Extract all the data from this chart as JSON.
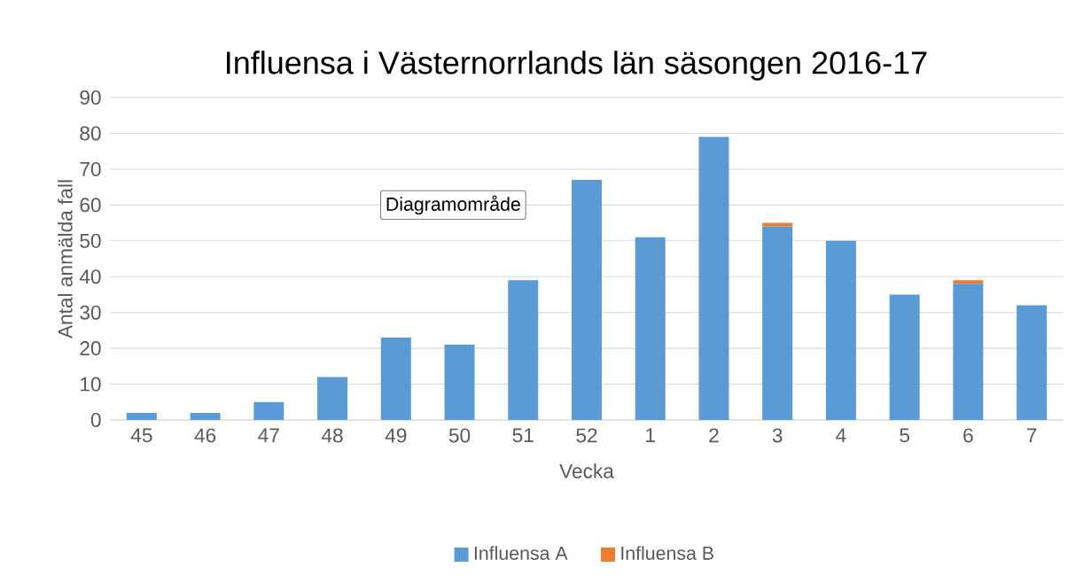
{
  "chart_data": {
    "type": "bar",
    "stacked": true,
    "title": "Influensa i Västernorrlands län säsongen 2016-17",
    "xlabel": "Vecka",
    "ylabel": "Antal anmälda fall",
    "categories": [
      "45",
      "46",
      "47",
      "48",
      "49",
      "50",
      "51",
      "52",
      "1",
      "2",
      "3",
      "4",
      "5",
      "6",
      "7"
    ],
    "series": [
      {
        "name": "Influensa A",
        "color": "#5b9bd5",
        "values": [
          2,
          2,
          5,
          12,
          23,
          21,
          39,
          67,
          51,
          79,
          54,
          50,
          35,
          38,
          32
        ]
      },
      {
        "name": "Influensa B",
        "color": "#ed7d31",
        "values": [
          0,
          0,
          0,
          0,
          0,
          0,
          0,
          0,
          0,
          0,
          1,
          0,
          0,
          1,
          0
        ]
      }
    ],
    "ylim": [
      0,
      90
    ],
    "yticks": [
      0,
      10,
      20,
      30,
      40,
      50,
      60,
      70,
      80,
      90
    ],
    "grid": "y",
    "legend": "bottom",
    "annotations": [
      "Diagramområde"
    ]
  }
}
